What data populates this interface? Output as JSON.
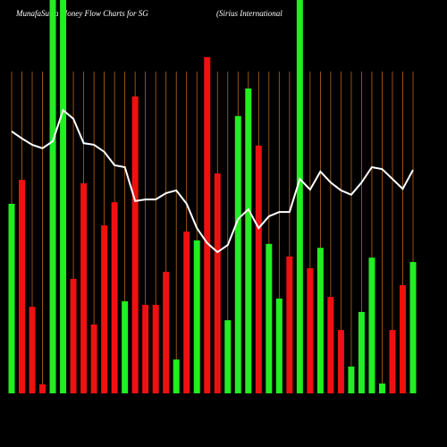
{
  "chart_data": {
    "type": "bar",
    "title": "MunafaSutra  Money Flow  Charts for SG",
    "subtitle": "(Sirius International",
    "ylim": [
      0,
      100
    ],
    "values": [
      48.2,
      54.3,
      22.0,
      2.3,
      100,
      100,
      29.1,
      53.4,
      17.5,
      42.7,
      48.6,
      23.4,
      75.5,
      22.5,
      22.5,
      30.9,
      8.6,
      41.1,
      38.9,
      85.5,
      55.9,
      18.6,
      70.5,
      77.5,
      63.0,
      38.0,
      24.1,
      34.8,
      100,
      31.8,
      37.0,
      24.5,
      16.1,
      6.8,
      20.7,
      34.5,
      2.5,
      16.1,
      27.5,
      33.4
    ],
    "colors": [
      "#22ee22",
      "#ee1111",
      "#ee1111",
      "#ee1111",
      "#22ee22",
      "#22ee22",
      "#ee1111",
      "#ee1111",
      "#ee1111",
      "#ee1111",
      "#ee1111",
      "#22ee22",
      "#ee1111",
      "#ee1111",
      "#ee1111",
      "#ee1111",
      "#22ee22",
      "#ee1111",
      "#22ee22",
      "#ee1111",
      "#ee1111",
      "#22ee22",
      "#22ee22",
      "#22ee22",
      "#ee1111",
      "#22ee22",
      "#22ee22",
      "#ee1111",
      "#22ee22",
      "#ee1111",
      "#22ee22",
      "#ee1111",
      "#ee1111",
      "#22ee22",
      "#22ee22",
      "#22ee22",
      "#22ee22",
      "#ee1111",
      "#ee1111",
      "#22ee22"
    ],
    "line": {
      "color": "#ffffff",
      "values": [
        66.6,
        64.8,
        63.2,
        62.3,
        64.1,
        72.0,
        69.8,
        63.6,
        63.2,
        61.4,
        58.0,
        57.5,
        48.9,
        49.3,
        49.3,
        50.9,
        51.6,
        48.2,
        42.0,
        38.2,
        35.9,
        37.7,
        44.3,
        46.8,
        42.0,
        45.0,
        46.1,
        46.1,
        54.5,
        51.8,
        56.4,
        53.6,
        51.6,
        50.5,
        53.6,
        57.5,
        57.0,
        54.5,
        52.0,
        56.8
      ]
    }
  }
}
